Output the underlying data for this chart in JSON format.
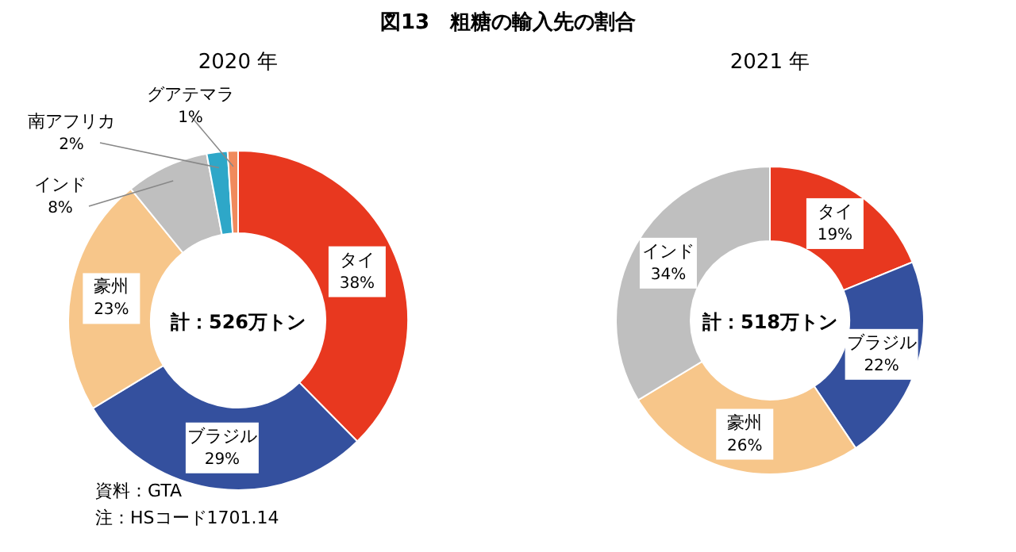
{
  "chart_data": [
    {
      "type": "donut",
      "title": "図13　粗糖の輸入先の割合",
      "subtitle": "2020 年",
      "categories": [
        "タイ",
        "ブラジル",
        "豪州",
        "インド",
        "南アフリカ",
        "グアテマラ"
      ],
      "values": [
        38,
        29,
        23,
        8,
        2,
        1
      ],
      "value_labels": [
        "38%",
        "29%",
        "23%",
        "8%",
        "2%",
        "1%"
      ],
      "colors": [
        "#e8381f",
        "#34509e",
        "#f7c68a",
        "#bfbfbf",
        "#2ea7c8",
        "#f08a5d"
      ],
      "annotations": [
        "計：526万トン",
        "資料：GTA",
        "注：HSコード1701.14"
      ],
      "legend": false
    },
    {
      "type": "donut",
      "subtitle": "2021 年",
      "categories": [
        "タイ",
        "ブラジル",
        "豪州",
        "インド"
      ],
      "values": [
        19,
        22,
        26,
        34
      ],
      "value_labels": [
        "19%",
        "22%",
        "26%",
        "34%"
      ],
      "colors": [
        "#e8381f",
        "#34509e",
        "#f7c68a",
        "#bfbfbf"
      ],
      "annotations": [
        "計：518万トン"
      ],
      "legend": false
    }
  ]
}
